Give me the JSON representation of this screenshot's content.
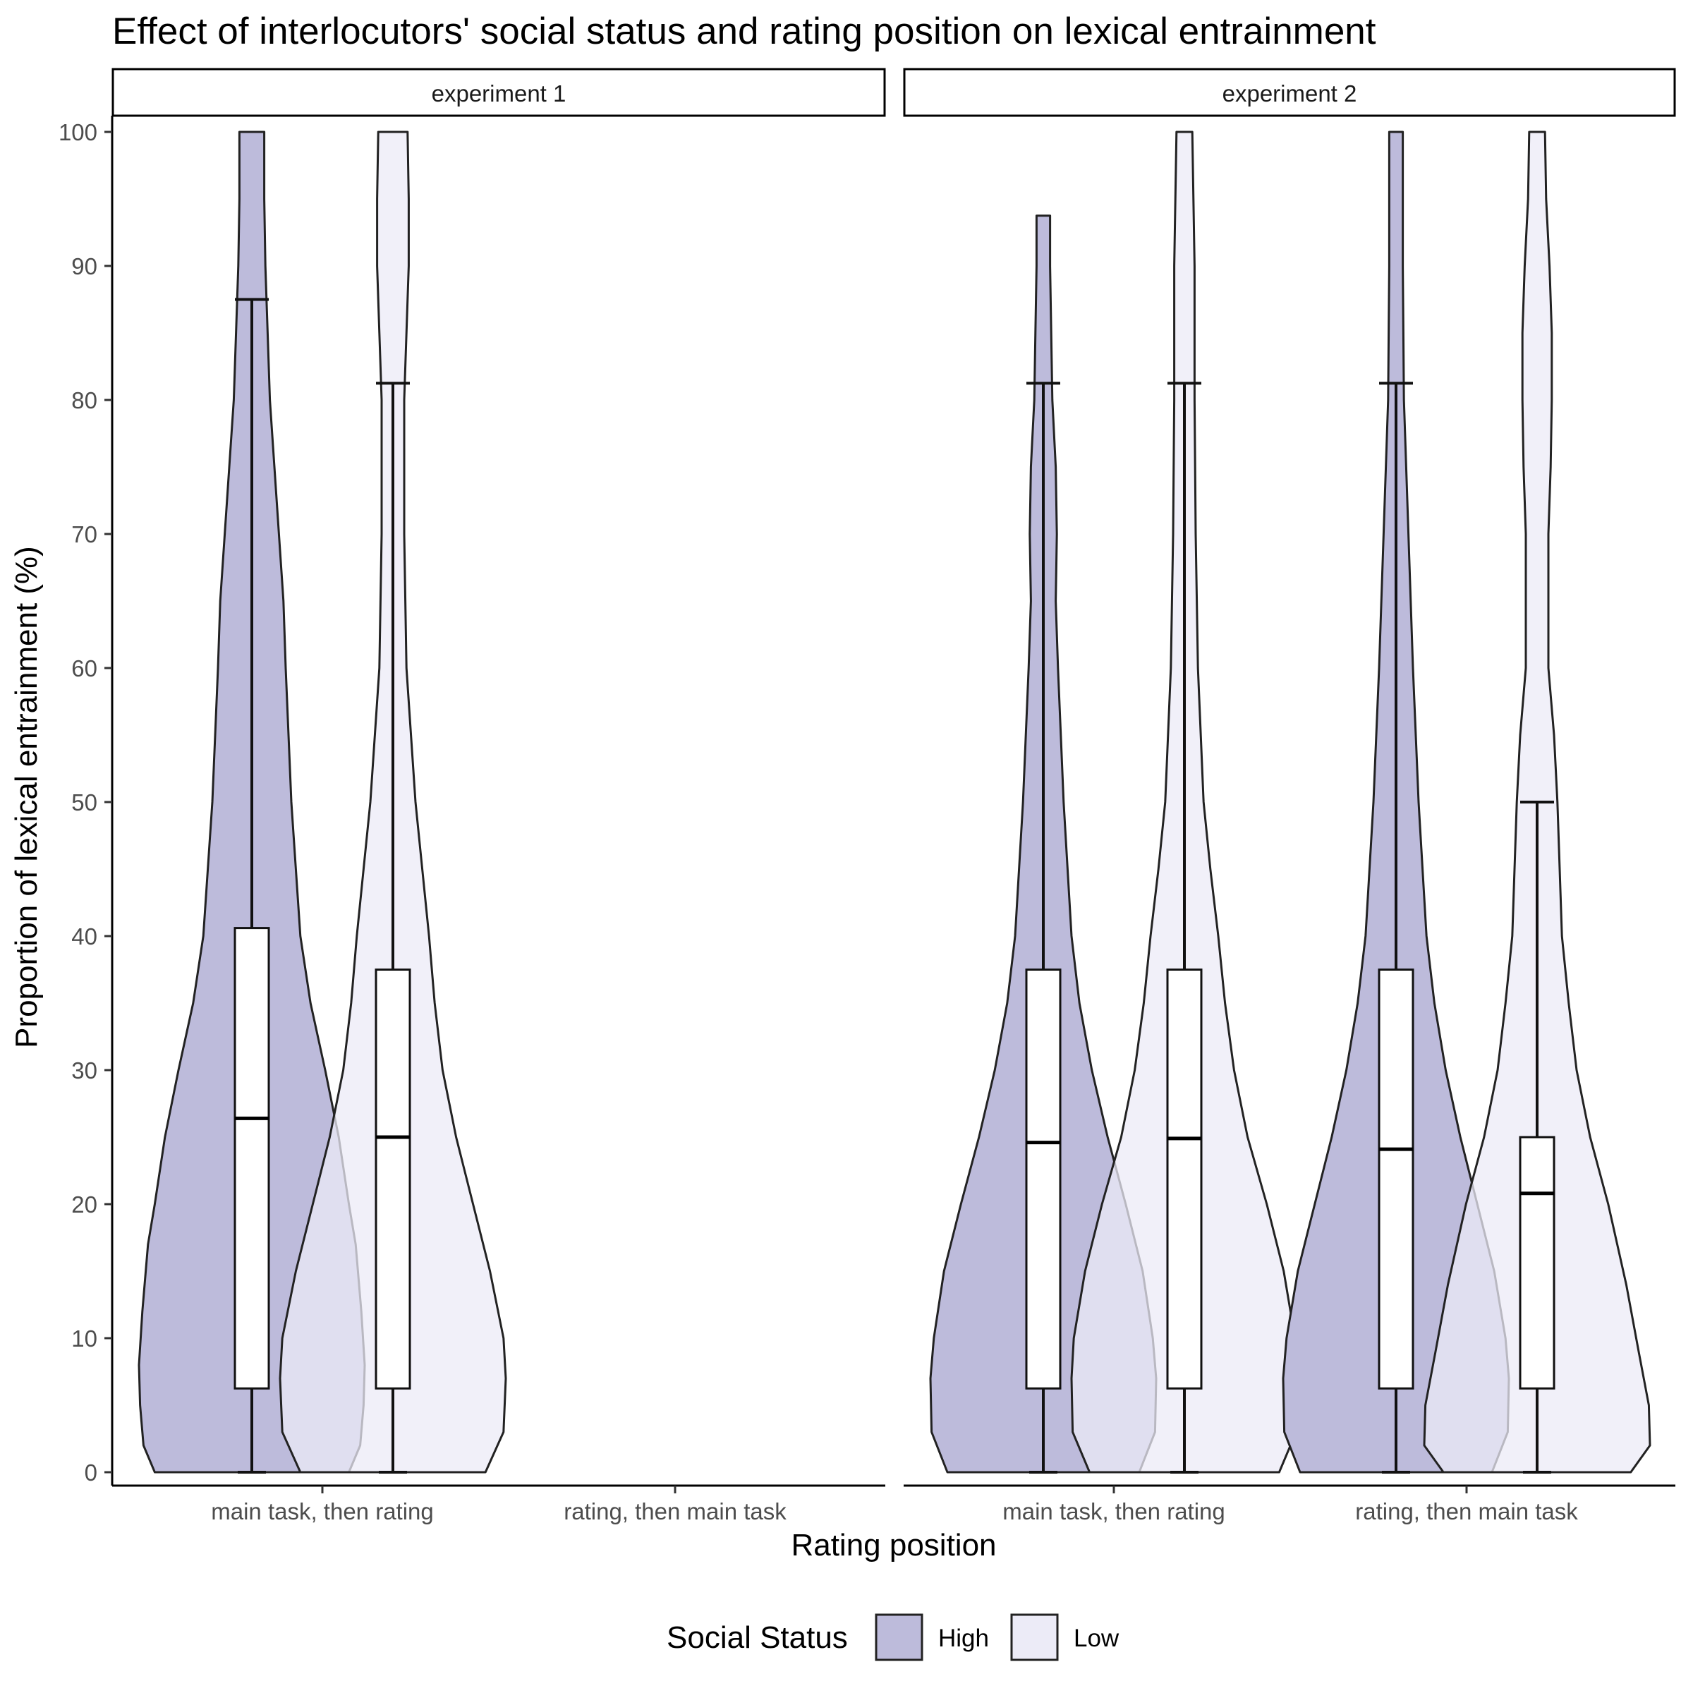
{
  "chart_data": {
    "type": "violin",
    "title": "Effect of interlocutors' social status and rating position on lexical entrainment",
    "xlabel": "Rating position",
    "ylabel": "Proportion of lexical entrainment (%)",
    "ylim": [
      0,
      100
    ],
    "yticks": [
      "0",
      "10",
      "20",
      "30",
      "40",
      "50",
      "60",
      "70",
      "80",
      "90",
      "100"
    ],
    "categories": [
      "main task, then rating",
      "rating, then main task"
    ],
    "grid": false,
    "legend": {
      "title": "Social Status",
      "position": "bottom",
      "items": [
        {
          "label": "High",
          "color": "#bdbbdb"
        },
        {
          "label": "Low",
          "color": "#ecebf7"
        }
      ]
    },
    "panels": [
      {
        "label": "experiment 1",
        "groups": [
          {
            "category": "main task, then rating",
            "status": "High",
            "box": {
              "min": 0,
              "q1": 6.25,
              "median": 26.4,
              "q3": 40.6,
              "max": 87.5
            },
            "violin_range": [
              0,
              100
            ],
            "density": [
              [
                0,
                0.86
              ],
              [
                2,
                0.96
              ],
              [
                5,
                0.99
              ],
              [
                8,
                1.0
              ],
              [
                12,
                0.97
              ],
              [
                17,
                0.92
              ],
              [
                20,
                0.86
              ],
              [
                25,
                0.77
              ],
              [
                30,
                0.65
              ],
              [
                35,
                0.52
              ],
              [
                40,
                0.43
              ],
              [
                50,
                0.35
              ],
              [
                60,
                0.3
              ],
              [
                65,
                0.28
              ],
              [
                70,
                0.24
              ],
              [
                80,
                0.16
              ],
              [
                90,
                0.12
              ],
              [
                95,
                0.11
              ],
              [
                100,
                0.11
              ]
            ]
          },
          {
            "category": "main task, then rating",
            "status": "Low",
            "box": {
              "min": 0,
              "q1": 6.25,
              "median": 25.0,
              "q3": 37.5,
              "max": 81.25
            },
            "violin_range": [
              0,
              100
            ],
            "density": [
              [
                0,
                0.82
              ],
              [
                3,
                0.98
              ],
              [
                7,
                1.0
              ],
              [
                10,
                0.98
              ],
              [
                15,
                0.86
              ],
              [
                20,
                0.71
              ],
              [
                25,
                0.56
              ],
              [
                30,
                0.44
              ],
              [
                35,
                0.37
              ],
              [
                40,
                0.32
              ],
              [
                45,
                0.26
              ],
              [
                50,
                0.2
              ],
              [
                60,
                0.12
              ],
              [
                70,
                0.1
              ],
              [
                80,
                0.1
              ],
              [
                85,
                0.12
              ],
              [
                90,
                0.14
              ],
              [
                95,
                0.14
              ],
              [
                100,
                0.13
              ]
            ]
          }
        ]
      },
      {
        "label": "experiment 2",
        "groups": [
          {
            "category": "main task, then rating",
            "status": "High",
            "box": {
              "min": 0,
              "q1": 6.25,
              "median": 24.6,
              "q3": 37.5,
              "max": 81.25
            },
            "violin_range": [
              0,
              93.75
            ],
            "density": [
              [
                0,
                0.85
              ],
              [
                3,
                0.99
              ],
              [
                7,
                1.0
              ],
              [
                10,
                0.97
              ],
              [
                15,
                0.88
              ],
              [
                20,
                0.73
              ],
              [
                25,
                0.57
              ],
              [
                30,
                0.43
              ],
              [
                35,
                0.32
              ],
              [
                40,
                0.25
              ],
              [
                50,
                0.18
              ],
              [
                60,
                0.13
              ],
              [
                65,
                0.11
              ],
              [
                70,
                0.12
              ],
              [
                75,
                0.11
              ],
              [
                80,
                0.08
              ],
              [
                85,
                0.07
              ],
              [
                90,
                0.06
              ],
              [
                93.75,
                0.06
              ]
            ]
          },
          {
            "category": "main task, then rating",
            "status": "Low",
            "box": {
              "min": 0,
              "q1": 6.25,
              "median": 24.9,
              "q3": 37.5,
              "max": 81.25
            },
            "violin_range": [
              0,
              100
            ],
            "density": [
              [
                0,
                0.84
              ],
              [
                3,
                0.99
              ],
              [
                7,
                1.0
              ],
              [
                10,
                0.98
              ],
              [
                15,
                0.88
              ],
              [
                20,
                0.73
              ],
              [
                25,
                0.56
              ],
              [
                30,
                0.44
              ],
              [
                35,
                0.36
              ],
              [
                40,
                0.3
              ],
              [
                45,
                0.23
              ],
              [
                50,
                0.17
              ],
              [
                60,
                0.12
              ],
              [
                70,
                0.1
              ],
              [
                80,
                0.09
              ],
              [
                90,
                0.09
              ],
              [
                95,
                0.08
              ],
              [
                100,
                0.07
              ]
            ]
          },
          {
            "category": "rating, then main task",
            "status": "High",
            "box": {
              "min": 0,
              "q1": 6.25,
              "median": 24.1,
              "q3": 37.5,
              "max": 81.25
            },
            "violin_range": [
              0,
              100
            ],
            "density": [
              [
                0,
                0.85
              ],
              [
                3,
                0.99
              ],
              [
                7,
                1.0
              ],
              [
                10,
                0.97
              ],
              [
                15,
                0.87
              ],
              [
                20,
                0.72
              ],
              [
                25,
                0.57
              ],
              [
                30,
                0.44
              ],
              [
                35,
                0.34
              ],
              [
                40,
                0.27
              ],
              [
                50,
                0.2
              ],
              [
                60,
                0.15
              ],
              [
                70,
                0.11
              ],
              [
                80,
                0.07
              ],
              [
                90,
                0.06
              ],
              [
                100,
                0.06
              ]
            ]
          },
          {
            "category": "rating, then main task",
            "status": "Low",
            "box": {
              "min": 0,
              "q1": 6.25,
              "median": 20.8,
              "q3": 25.0,
              "max": 50.0
            },
            "violin_range": [
              0,
              100
            ],
            "density": [
              [
                0,
                0.83
              ],
              [
                2,
                1.0
              ],
              [
                5,
                0.99
              ],
              [
                9,
                0.9
              ],
              [
                14,
                0.79
              ],
              [
                20,
                0.63
              ],
              [
                25,
                0.47
              ],
              [
                30,
                0.35
              ],
              [
                35,
                0.28
              ],
              [
                40,
                0.22
              ],
              [
                45,
                0.2
              ],
              [
                50,
                0.18
              ],
              [
                55,
                0.15
              ],
              [
                60,
                0.1
              ],
              [
                65,
                0.1
              ],
              [
                70,
                0.1
              ],
              [
                75,
                0.12
              ],
              [
                80,
                0.13
              ],
              [
                85,
                0.13
              ],
              [
                90,
                0.11
              ],
              [
                95,
                0.08
              ],
              [
                100,
                0.07
              ]
            ]
          }
        ]
      }
    ]
  }
}
